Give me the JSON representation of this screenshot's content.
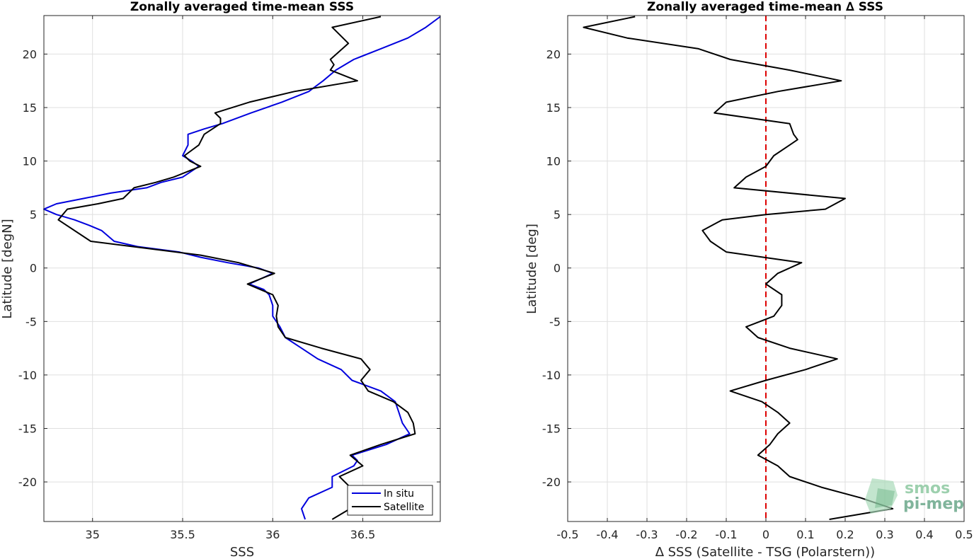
{
  "chart_data": [
    {
      "type": "line",
      "title": "Zonally averaged time-mean SSS",
      "xlabel": "SSS",
      "ylabel": "Latitude [degN]",
      "xlim": [
        34.73,
        36.93
      ],
      "ylim": [
        -23.7,
        23.6
      ],
      "xticks": [
        35,
        35.5,
        36,
        36.5
      ],
      "xtick_labels": [
        "35",
        "35.5",
        "36",
        "36.5"
      ],
      "yticks": [
        -20,
        -15,
        -10,
        -5,
        0,
        5,
        10,
        15,
        20
      ],
      "ytick_labels": [
        "-20",
        "-15",
        "-10",
        "-5",
        "0",
        "5",
        "10",
        "15",
        "20"
      ],
      "grid": true,
      "legend_location": "bottom-right",
      "series": [
        {
          "name": "In situ",
          "color": "#0000dd",
          "points": [
            [
              36.93,
              23.5
            ],
            [
              36.85,
              22.5
            ],
            [
              36.75,
              21.5
            ],
            [
              36.6,
              20.5
            ],
            [
              36.45,
              19.5
            ],
            [
              36.35,
              18.5
            ],
            [
              36.28,
              17.5
            ],
            [
              36.2,
              16.5
            ],
            [
              36.05,
              15.5
            ],
            [
              35.88,
              14.5
            ],
            [
              35.72,
              13.5
            ],
            [
              35.62,
              13.0
            ],
            [
              35.53,
              12.5
            ],
            [
              35.53,
              11.5
            ],
            [
              35.5,
              10.5
            ],
            [
              35.55,
              10.0
            ],
            [
              35.59,
              9.5
            ],
            [
              35.5,
              8.5
            ],
            [
              35.38,
              8.0
            ],
            [
              35.3,
              7.5
            ],
            [
              35.1,
              7.0
            ],
            [
              34.95,
              6.5
            ],
            [
              34.8,
              6.0
            ],
            [
              34.73,
              5.5
            ],
            [
              34.8,
              5.0
            ],
            [
              34.9,
              4.5
            ],
            [
              34.98,
              4.0
            ],
            [
              35.05,
              3.5
            ],
            [
              35.12,
              2.5
            ],
            [
              35.25,
              2.0
            ],
            [
              35.48,
              1.5
            ],
            [
              35.6,
              1.0
            ],
            [
              35.75,
              0.5
            ],
            [
              35.92,
              0.0
            ],
            [
              36.0,
              -0.5
            ],
            [
              35.87,
              -1.5
            ],
            [
              35.95,
              -2.0
            ],
            [
              35.98,
              -2.5
            ],
            [
              36.0,
              -3.5
            ],
            [
              36.0,
              -4.5
            ],
            [
              36.04,
              -5.5
            ],
            [
              36.07,
              -6.5
            ],
            [
              36.16,
              -7.5
            ],
            [
              36.25,
              -8.5
            ],
            [
              36.38,
              -9.5
            ],
            [
              36.44,
              -10.5
            ],
            [
              36.6,
              -11.5
            ],
            [
              36.68,
              -12.5
            ],
            [
              36.7,
              -13.5
            ],
            [
              36.72,
              -14.5
            ],
            [
              36.76,
              -15.5
            ],
            [
              36.63,
              -16.5
            ],
            [
              36.44,
              -17.5
            ],
            [
              36.47,
              -18.0
            ],
            [
              36.45,
              -18.5
            ],
            [
              36.33,
              -19.5
            ],
            [
              36.33,
              -20.5
            ],
            [
              36.2,
              -21.5
            ],
            [
              36.16,
              -22.5
            ],
            [
              36.18,
              -23.5
            ]
          ]
        },
        {
          "name": "Satellite",
          "color": "#000000",
          "points": [
            [
              36.6,
              23.5
            ],
            [
              36.33,
              22.5
            ],
            [
              36.42,
              21.0
            ],
            [
              36.32,
              19.5
            ],
            [
              36.34,
              19.0
            ],
            [
              36.32,
              18.5
            ],
            [
              36.47,
              17.5
            ],
            [
              36.12,
              16.5
            ],
            [
              35.87,
              15.5
            ],
            [
              35.68,
              14.5
            ],
            [
              35.71,
              14.0
            ],
            [
              35.71,
              13.5
            ],
            [
              35.62,
              12.5
            ],
            [
              35.59,
              11.5
            ],
            [
              35.51,
              10.5
            ],
            [
              35.54,
              10.0
            ],
            [
              35.6,
              9.5
            ],
            [
              35.45,
              8.5
            ],
            [
              35.35,
              8.0
            ],
            [
              35.23,
              7.5
            ],
            [
              35.17,
              6.5
            ],
            [
              35.03,
              6.0
            ],
            [
              34.86,
              5.5
            ],
            [
              34.81,
              4.5
            ],
            [
              34.99,
              2.5
            ],
            [
              35.6,
              1.2
            ],
            [
              35.81,
              0.5
            ],
            [
              36.01,
              -0.5
            ],
            [
              35.86,
              -1.5
            ],
            [
              36.0,
              -2.5
            ],
            [
              36.03,
              -3.5
            ],
            [
              36.02,
              -4.5
            ],
            [
              36.03,
              -5.5
            ],
            [
              36.07,
              -6.5
            ],
            [
              36.27,
              -7.5
            ],
            [
              36.49,
              -8.5
            ],
            [
              36.54,
              -9.5
            ],
            [
              36.49,
              -10.5
            ],
            [
              36.53,
              -11.5
            ],
            [
              36.67,
              -12.5
            ],
            [
              36.75,
              -13.5
            ],
            [
              36.78,
              -14.5
            ],
            [
              36.79,
              -15.5
            ],
            [
              36.6,
              -16.5
            ],
            [
              36.43,
              -17.5
            ],
            [
              36.5,
              -18.5
            ],
            [
              36.37,
              -19.5
            ],
            [
              36.43,
              -20.5
            ],
            [
              36.42,
              -21.5
            ],
            [
              36.43,
              -22.5
            ],
            [
              36.33,
              -23.5
            ]
          ]
        }
      ]
    },
    {
      "type": "line",
      "title": "Zonally averaged time-mean ∆ SSS",
      "xlabel": "∆ SSS (Satellite - TSG (Polarstern))",
      "ylabel": "Latitude [deg]",
      "xlim": [
        -0.5,
        0.5
      ],
      "ylim": [
        -23.7,
        23.6
      ],
      "xticks": [
        -0.5,
        -0.4,
        -0.3,
        -0.2,
        -0.1,
        0,
        0.1,
        0.2,
        0.3,
        0.4,
        0.5
      ],
      "xtick_labels": [
        "-0.5",
        "-0.4",
        "-0.3",
        "-0.2",
        "-0.1",
        "0",
        "0.1",
        "0.2",
        "0.3",
        "0.4",
        "0.5"
      ],
      "yticks": [
        -20,
        -15,
        -10,
        -5,
        0,
        5,
        10,
        15,
        20
      ],
      "ytick_labels": [
        "-20",
        "-15",
        "-10",
        "-5",
        "0",
        "5",
        "10",
        "15",
        "20"
      ],
      "grid": true,
      "reference_line": {
        "x": 0,
        "color": "#dd0000",
        "style": "dashed"
      },
      "series": [
        {
          "color": "#000000",
          "points": [
            [
              -0.33,
              23.5
            ],
            [
              -0.46,
              22.5
            ],
            [
              -0.35,
              21.5
            ],
            [
              -0.17,
              20.5
            ],
            [
              -0.09,
              19.5
            ],
            [
              0.06,
              18.5
            ],
            [
              0.19,
              17.5
            ],
            [
              0.03,
              16.5
            ],
            [
              -0.1,
              15.5
            ],
            [
              -0.13,
              14.5
            ],
            [
              0.06,
              13.5
            ],
            [
              0.07,
              12.5
            ],
            [
              0.08,
              12.0
            ],
            [
              0.06,
              11.5
            ],
            [
              0.02,
              10.5
            ],
            [
              0.0,
              9.5
            ],
            [
              -0.05,
              8.5
            ],
            [
              -0.08,
              7.5
            ],
            [
              0.2,
              6.5
            ],
            [
              0.15,
              5.5
            ],
            [
              0.0,
              5.0
            ],
            [
              -0.11,
              4.5
            ],
            [
              -0.16,
              3.5
            ],
            [
              -0.14,
              2.5
            ],
            [
              -0.1,
              1.5
            ],
            [
              0.09,
              0.5
            ],
            [
              0.03,
              -0.5
            ],
            [
              0.0,
              -1.5
            ],
            [
              0.04,
              -2.5
            ],
            [
              0.04,
              -3.5
            ],
            [
              0.02,
              -4.5
            ],
            [
              -0.05,
              -5.5
            ],
            [
              -0.02,
              -6.5
            ],
            [
              0.06,
              -7.5
            ],
            [
              0.18,
              -8.5
            ],
            [
              0.1,
              -9.5
            ],
            [
              0.0,
              -10.5
            ],
            [
              -0.09,
              -11.5
            ],
            [
              -0.01,
              -12.5
            ],
            [
              0.03,
              -13.5
            ],
            [
              0.06,
              -14.5
            ],
            [
              0.03,
              -15.5
            ],
            [
              0.01,
              -16.5
            ],
            [
              -0.02,
              -17.5
            ],
            [
              0.03,
              -18.5
            ],
            [
              0.06,
              -19.5
            ],
            [
              0.14,
              -20.5
            ],
            [
              0.24,
              -21.5
            ],
            [
              0.32,
              -22.5
            ],
            [
              0.16,
              -23.5
            ]
          ]
        }
      ]
    }
  ],
  "watermark": {
    "line1": "smos",
    "line2": "pi-mep"
  }
}
